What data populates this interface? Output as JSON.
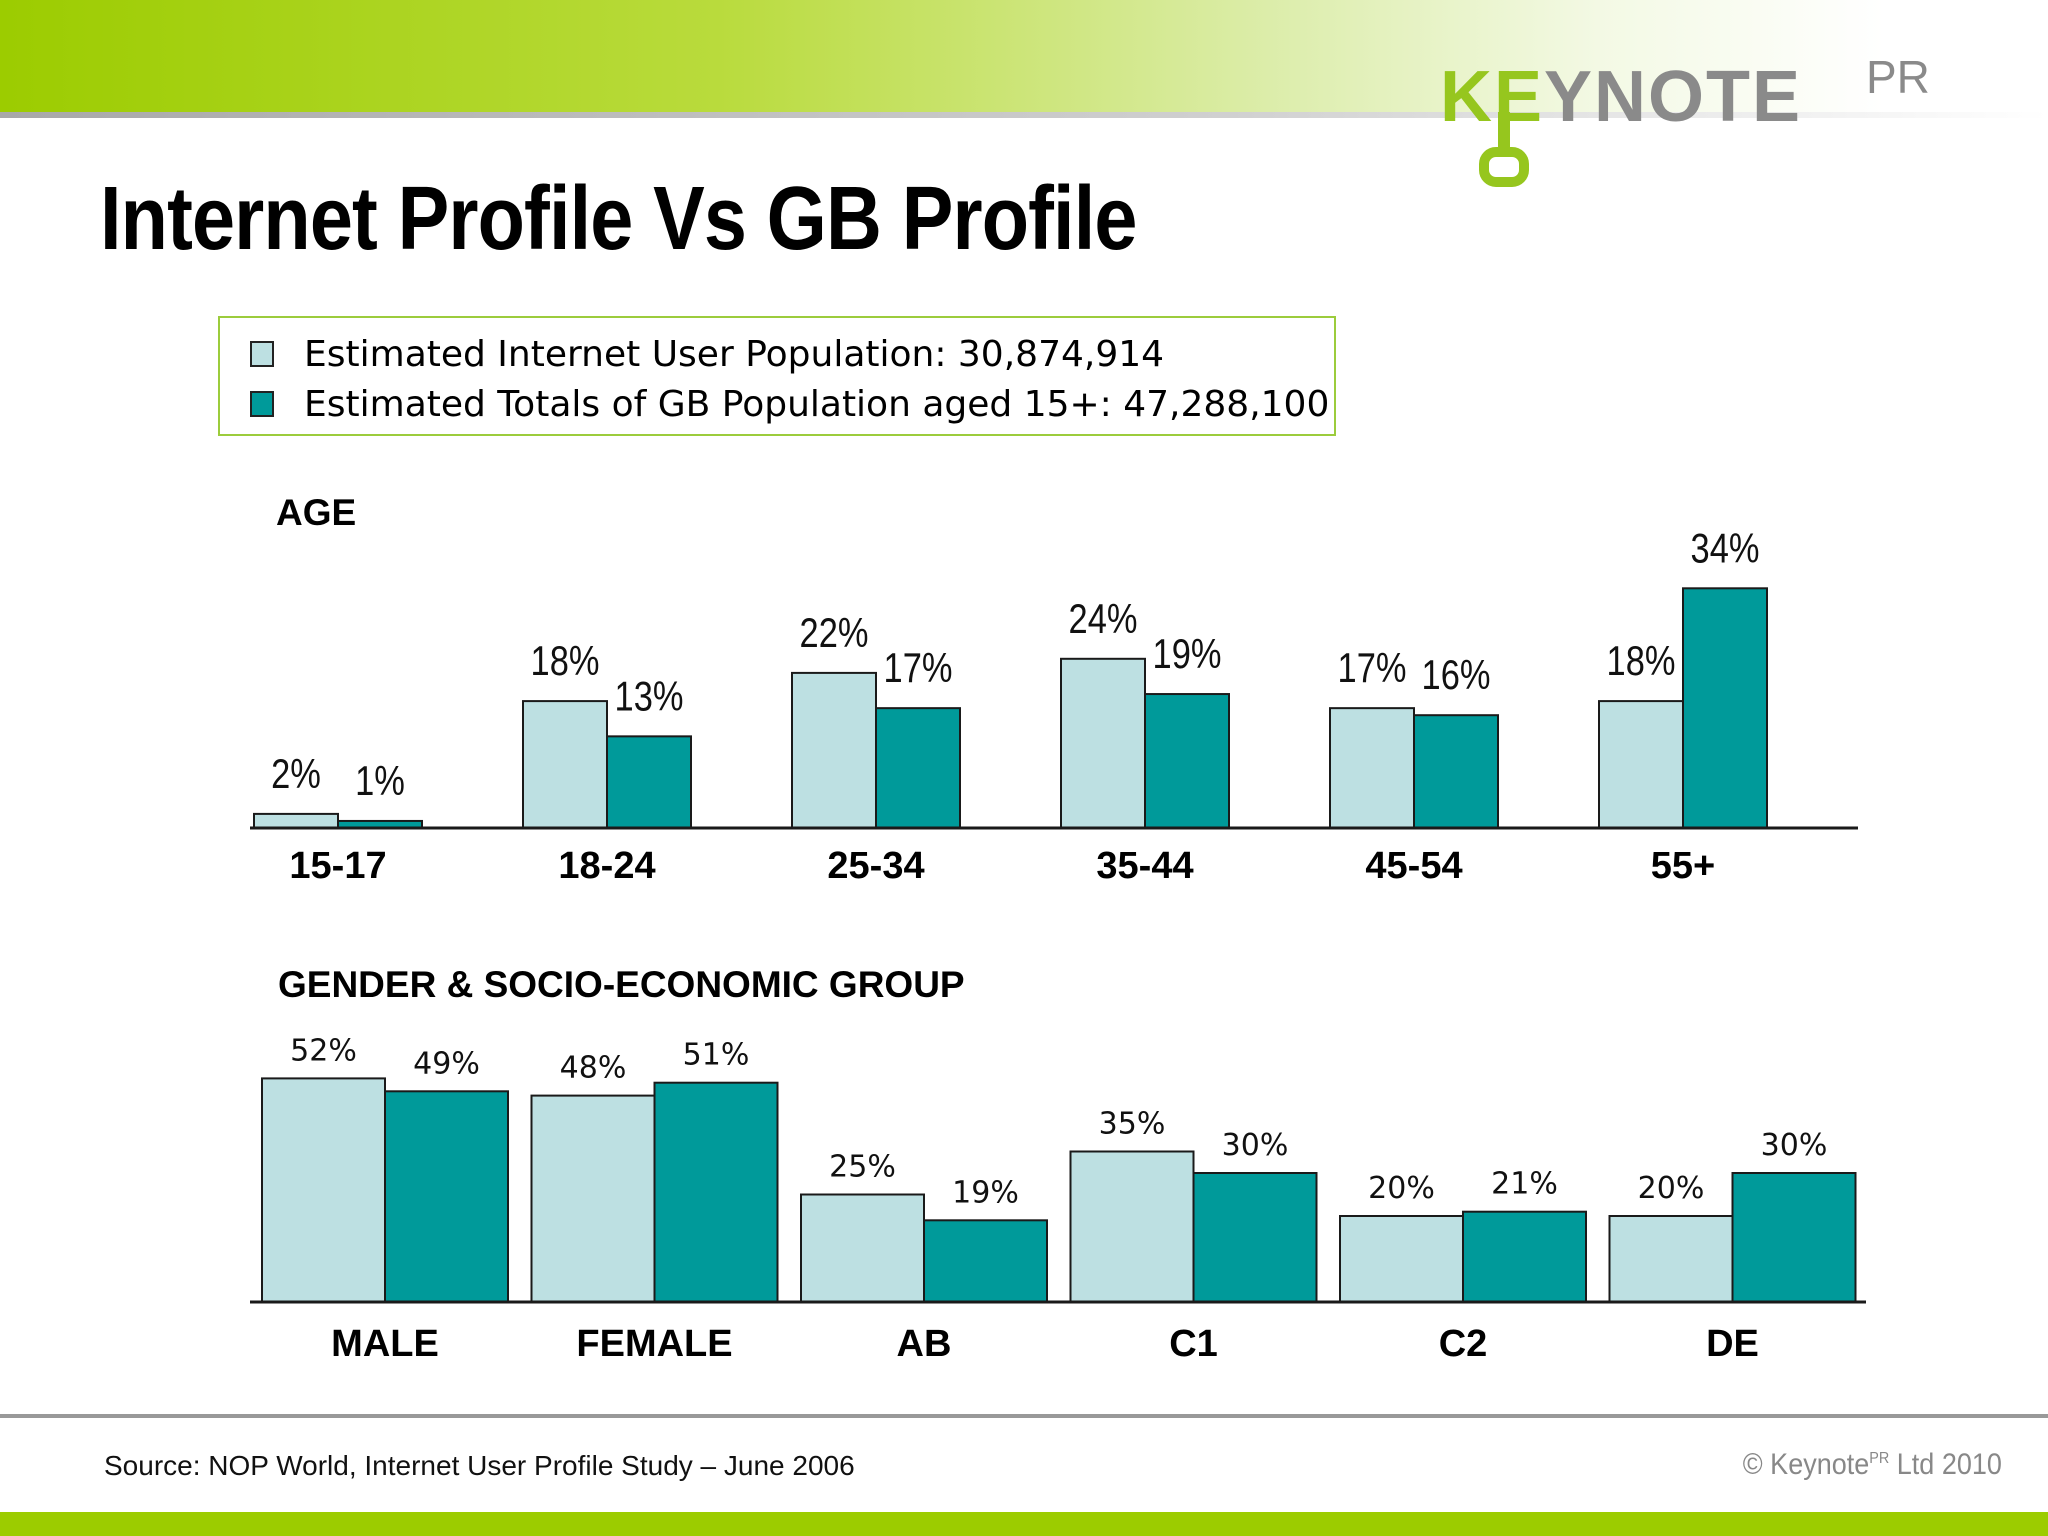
{
  "header": {
    "title": "Internet Profile Vs GB Profile",
    "logo_text": "KEYNOTE PR",
    "logo_main": "KEYNOTE",
    "logo_sup": "PR"
  },
  "legend": {
    "internet_label": "Estimated Internet User Population: 30,874,914",
    "gb_label": "Estimated Totals of GB Population aged 15+: 47,288,100"
  },
  "colors": {
    "internet": "#bde0e2",
    "gb": "#009a9a",
    "accent": "#9ccc00"
  },
  "chart_data": [
    {
      "type": "bar",
      "title": "AGE",
      "categories": [
        "15-17",
        "18-24",
        "25-34",
        "35-44",
        "45-54",
        "55+"
      ],
      "series": [
        {
          "name": "Estimated Internet User Population: 30,874,914",
          "values": [
            2,
            18,
            22,
            24,
            17,
            18
          ],
          "labels": [
            "2%",
            "18%",
            "22%",
            "24%",
            "17%",
            "18%"
          ]
        },
        {
          "name": "Estimated Totals of GB Population aged 15+: 47,288,100",
          "values": [
            1,
            13,
            17,
            19,
            16,
            34
          ],
          "labels": [
            "1%",
            "13%",
            "17%",
            "19%",
            "16%",
            "34%"
          ]
        }
      ],
      "unit": "%",
      "ylim": [
        0,
        40
      ],
      "grid": false,
      "legend": "top-left"
    },
    {
      "type": "bar",
      "title": "GENDER & SOCIO-ECONOMIC GROUP",
      "categories": [
        "MALE",
        "FEMALE",
        "AB",
        "C1",
        "C2",
        "DE"
      ],
      "series": [
        {
          "name": "Estimated Internet User Population: 30,874,914",
          "values": [
            52,
            48,
            25,
            35,
            20,
            20
          ],
          "labels": [
            "52%",
            "48%",
            "25%",
            "35%",
            "20%",
            "20%"
          ]
        },
        {
          "name": "Estimated Totals of GB Population aged 15+: 47,288,100",
          "values": [
            49,
            51,
            19,
            30,
            21,
            30
          ],
          "labels": [
            "49%",
            "51%",
            "19%",
            "30%",
            "21%",
            "30%"
          ]
        }
      ],
      "unit": "%",
      "ylim": [
        0,
        60
      ],
      "grid": false,
      "legend": "top-left"
    }
  ],
  "footer": {
    "source": "Source: NOP World, Internet User Profile Study – June 2006",
    "copyright_prefix": "© Keynote",
    "copyright_sup": "PR",
    "copyright_suffix": " Ltd 2010"
  }
}
